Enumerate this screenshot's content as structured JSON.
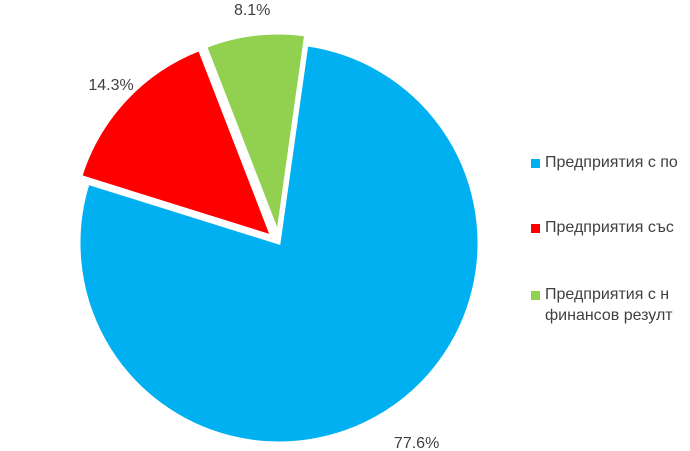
{
  "chart_data": {
    "type": "pie",
    "categories": [
      "Предприятия с по",
      "Предприятия със",
      "Предприятия с н\nфинансов резулт"
    ],
    "values": [
      77.6,
      14.3,
      8.1
    ],
    "value_labels": [
      "77.6%",
      "14.3%",
      "8.1%"
    ],
    "colors": [
      "#00b0f0",
      "#ff0000",
      "#92d050"
    ],
    "legend": "right"
  }
}
